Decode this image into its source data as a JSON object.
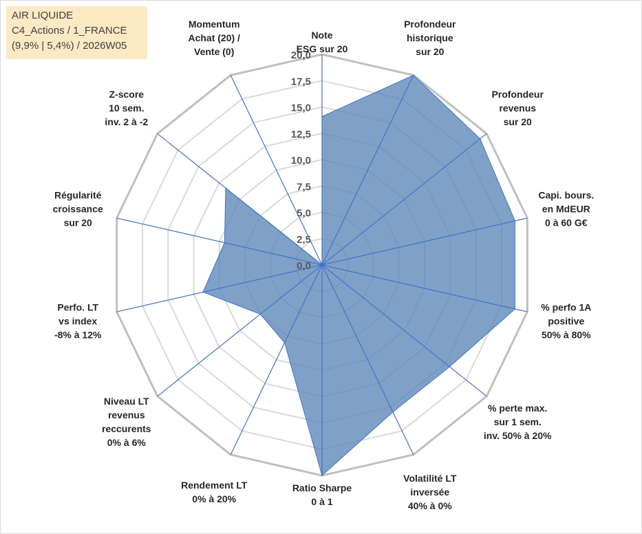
{
  "info": {
    "line1": "AIR LIQUIDE",
    "line2": "C4_Actions / 1_FRANCE",
    "line3": "(9,9% | 5,4%) / 2026W05"
  },
  "colors": {
    "fill": "#5b87b8",
    "stroke": "#4472c4",
    "grid": "#bfbfbf",
    "ring": "#d9d9d9"
  },
  "chart_data": {
    "type": "radar",
    "title": "",
    "rmin": 0,
    "rmax": 20,
    "ticks": [
      "0,0",
      "2,5",
      "5,0",
      "7,5",
      "10,0",
      "12,5",
      "15,0",
      "17,5",
      "20,0"
    ],
    "categories": [
      [
        "Note",
        "ESG sur 20"
      ],
      [
        "Profondeur",
        "historique",
        "sur 20"
      ],
      [
        "Profondeur",
        "revenus",
        "sur 20"
      ],
      [
        "Capi. bours.",
        "en MdEUR",
        "0 à 60 G€"
      ],
      [
        "% perfo 1A",
        "positive",
        "50% à 80%"
      ],
      [
        "% perte max.",
        "sur 1 sem.",
        "inv. 50% à 20%"
      ],
      [
        "Volatilité LT",
        "inversée",
        "40% à 0%"
      ],
      [
        "Ratio Sharpe",
        "0 à 1"
      ],
      [
        "Rendement LT",
        "0% à 20%"
      ],
      [
        "Niveau LT",
        "revenus",
        "reccurents",
        "0% à 6%"
      ],
      [
        "Perfo. LT",
        "vs index",
        "-8% à 12%"
      ],
      [
        "Régularité",
        "croissance",
        "sur 20"
      ],
      [
        "Z-score",
        "10 sem.",
        "inv. 2 à -2"
      ],
      [
        "Momentum",
        "Achat (20) /",
        "Vente (0)"
      ]
    ],
    "series": [
      {
        "name": "AIR LIQUIDE",
        "values": [
          14.1,
          20,
          19.2,
          18.8,
          18.8,
          15.5,
          15.5,
          20,
          8.2,
          7.5,
          11.6,
          9.5,
          11.7,
          0
        ]
      }
    ]
  }
}
